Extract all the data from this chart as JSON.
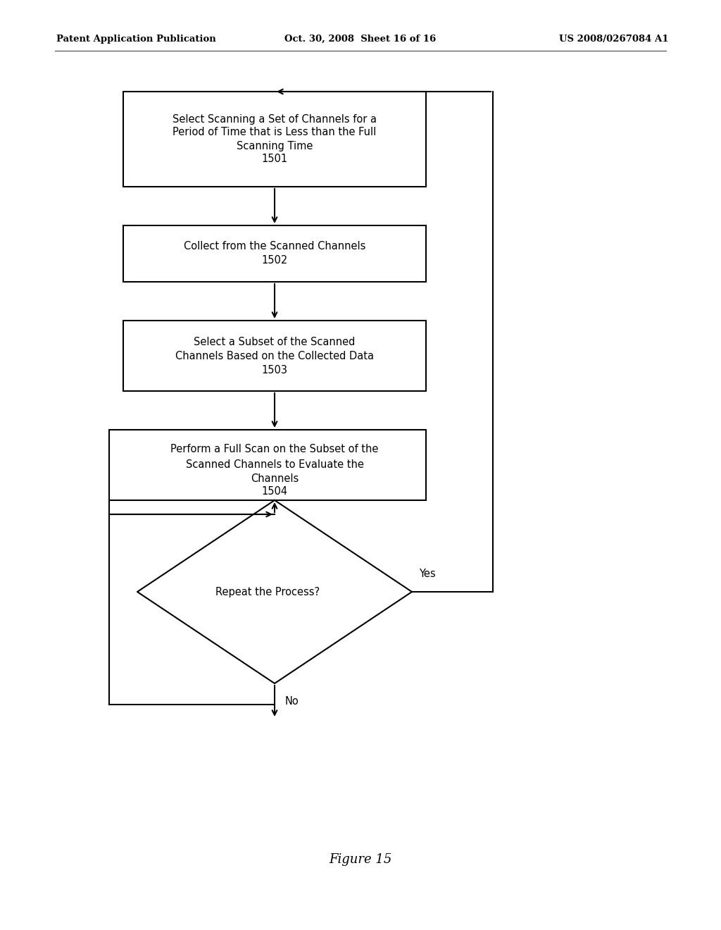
{
  "header_left": "Patent Application Publication",
  "header_mid": "Oct. 30, 2008  Sheet 16 of 16",
  "header_right": "US 2008/0267084 A1",
  "box1_line1": "Select Scanning a Set of Channels for a",
  "box1_line2": "Period of Time that is Less than the Full",
  "box1_line3": "Scanning Time",
  "box1_num": "1501",
  "box2_line1": "Collect from the Scanned Channels",
  "box2_num": "1502",
  "box3_line1": "Select a Subset of the Scanned",
  "box3_line2": "Channels Based on the Collected Data",
  "box3_num": "1503",
  "box4_line1": "Perform a Full Scan on the Subset of the",
  "box4_line2": "Scanned Channels to Evaluate the",
  "box4_line3": "Channels",
  "box4_num": "1504",
  "diamond_text": "Repeat the Process?",
  "yes_label": "Yes",
  "no_label": "No",
  "caption": "Figure 15",
  "bg_color": "#ffffff",
  "text_color": "#000000"
}
